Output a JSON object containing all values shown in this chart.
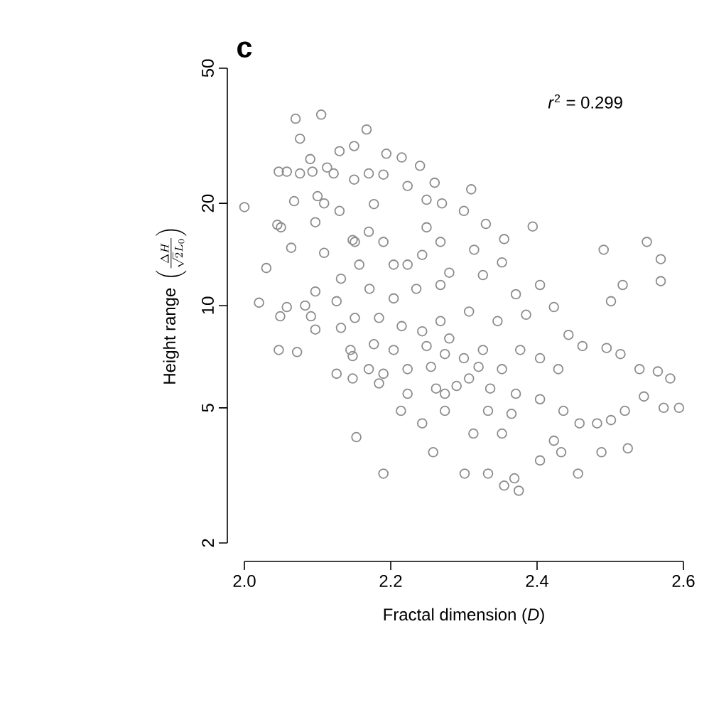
{
  "chart_data": {
    "type": "scatter",
    "title": "c",
    "xlabel": "Fractal dimension (*D*)",
    "ylabel": "\\text{Height range }\\left(\\frac{\\Delta H}{\\sqrt{2}L_0}\\right)",
    "annotations": [
      "*r*$^{2}$ = 0.299"
    ],
    "log": "y",
    "marker": "circle",
    "xlim": [
      2.0,
      2.6
    ],
    "xticks": [
      {
        "value": 2.0,
        "label": "2.0"
      },
      2.2,
      2.4,
      2.6
    ],
    "ylim": [
      2,
      50
    ],
    "yticks": [
      2,
      5,
      10,
      20,
      50
    ],
    "series": [
      {
        "color": "#8c8c8c",
        "x": [
          2.07,
          2.105,
          2.076,
          2.167,
          2.13,
          2.09,
          2.047,
          2.058,
          2.076,
          2.093,
          2.113,
          2.122,
          2.15,
          2.15,
          2.17,
          2.194,
          2.215,
          2.24,
          2.0,
          2.068,
          2.1,
          2.109,
          2.045,
          2.05,
          2.064,
          2.097,
          2.13,
          2.148,
          2.17,
          2.03,
          2.109,
          2.132,
          2.02,
          2.049,
          2.058,
          2.083,
          2.097,
          2.091,
          2.097,
          2.126,
          2.132,
          2.047,
          2.072,
          2.148,
          2.126,
          2.148,
          2.17,
          2.184,
          2.153,
          2.19,
          2.214,
          2.243,
          2.258,
          2.274,
          2.19,
          2.223,
          2.249,
          2.27,
          2.177,
          2.151,
          2.19,
          2.223,
          2.249,
          2.243,
          2.268,
          2.157,
          2.204,
          2.171,
          2.204,
          2.235,
          2.268,
          2.151,
          2.184,
          2.215,
          2.243,
          2.268,
          2.145,
          2.177,
          2.204,
          2.249,
          2.274,
          2.19,
          2.223,
          2.255,
          2.223,
          2.262,
          2.274,
          2.33,
          2.394,
          2.355,
          2.491,
          2.55,
          2.569,
          2.569,
          2.517,
          2.501,
          2.404,
          2.371,
          2.352,
          2.314,
          2.326,
          2.423,
          2.385,
          2.346,
          2.307,
          2.443,
          2.462,
          2.495,
          2.514,
          2.54,
          2.565,
          2.582,
          2.594,
          2.573,
          2.546,
          2.52,
          2.501,
          2.482,
          2.458,
          2.436,
          2.404,
          2.429,
          2.404,
          2.377,
          2.352,
          2.326,
          2.307,
          2.336,
          2.371,
          2.365,
          2.333,
          2.313,
          2.352,
          2.423,
          2.433,
          2.404,
          2.456,
          2.488,
          2.524,
          2.301,
          2.333,
          2.355,
          2.375,
          2.369,
          2.28,
          2.3,
          2.32,
          2.29,
          2.28,
          2.3,
          2.31,
          2.26
        ],
        "values": [
          35.5,
          36.5,
          31,
          33,
          28.5,
          27,
          24.8,
          24.8,
          24.5,
          24.8,
          25.5,
          24.5,
          29.5,
          23.5,
          24.5,
          28,
          27.3,
          25.8,
          19.5,
          20.3,
          21,
          20,
          17.3,
          17,
          14.8,
          17.6,
          19,
          15.6,
          16.5,
          12.9,
          14.3,
          12,
          10.2,
          9.3,
          9.9,
          10,
          11,
          9.3,
          8.5,
          10.3,
          8.6,
          7.4,
          7.3,
          7.1,
          6.3,
          6.1,
          6.5,
          5.9,
          4.1,
          3.2,
          4.9,
          4.5,
          3.7,
          4.9,
          24.3,
          22.5,
          20.5,
          20,
          19.9,
          15.4,
          15.4,
          13.2,
          17,
          14.1,
          15.4,
          13.2,
          13.2,
          11.2,
          10.5,
          11.2,
          11.5,
          9.2,
          9.2,
          8.7,
          8.4,
          9.0,
          7.4,
          7.7,
          7.4,
          7.6,
          7.2,
          6.3,
          6.5,
          6.6,
          5.5,
          5.7,
          5.5,
          17.4,
          17.1,
          15.7,
          14.6,
          15.4,
          13.7,
          11.8,
          11.5,
          10.3,
          11.5,
          10.8,
          13.4,
          14.6,
          12.3,
          9.9,
          9.4,
          9.0,
          9.6,
          8.2,
          7.6,
          7.5,
          7.2,
          6.5,
          6.4,
          6.1,
          5.0,
          5.0,
          5.4,
          4.9,
          4.6,
          4.5,
          4.5,
          4.9,
          5.3,
          6.5,
          7.0,
          7.4,
          6.5,
          7.4,
          6.1,
          5.7,
          5.5,
          4.8,
          4.9,
          4.2,
          4.2,
          4.0,
          3.7,
          3.5,
          3.2,
          3.7,
          3.8,
          3.2,
          3.2,
          2.95,
          2.85,
          3.1,
          8.0,
          7.0,
          6.6,
          5.8,
          12.5,
          19,
          22,
          23
        ]
      }
    ]
  }
}
